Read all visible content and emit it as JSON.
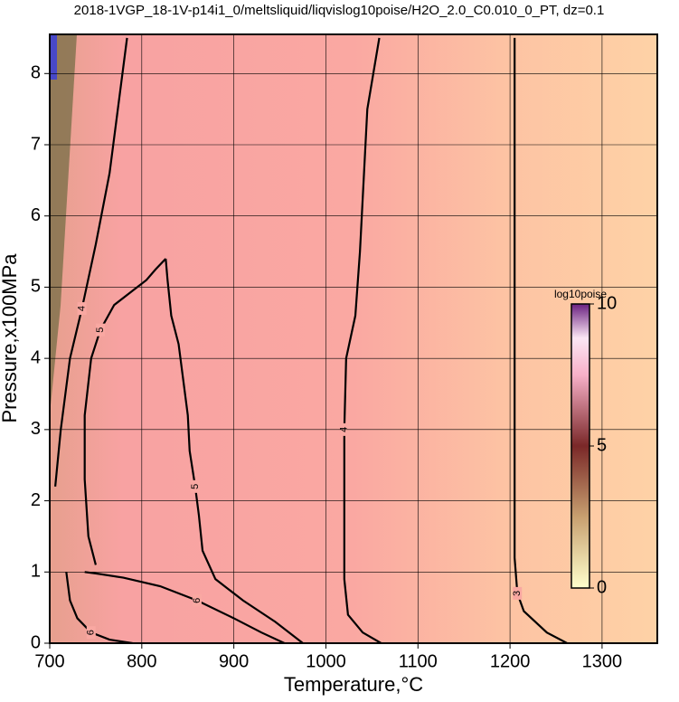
{
  "chart_data": {
    "type": "contour",
    "title": "2018-1VGP_18-1V-p14i1_0/meltsliquid/liqvislog10poise/H2O_2.0_C0.010_0_PT, dz=0.1",
    "x_label": "Temperature,°C",
    "y_label": "Pressure,x100MPa",
    "xlim": [
      700,
      1360
    ],
    "ylim": [
      0,
      8.55
    ],
    "xticks": [
      700,
      800,
      900,
      1000,
      1100,
      1200,
      1300
    ],
    "yticks": [
      0,
      1,
      2,
      3,
      4,
      5,
      6,
      7,
      8
    ],
    "grid": true,
    "contours": [
      {
        "level": 3,
        "x": [
          1205,
          1205,
          1205,
          1205,
          1208,
          1215,
          1240,
          1262
        ],
        "y": [
          8.5,
          6,
          3,
          1.2,
          0.7,
          0.45,
          0.15,
          0
        ]
      },
      {
        "level": 4,
        "x": [
          1058,
          1045,
          1037,
          1032,
          1022,
          1020,
          1020,
          1020,
          1024,
          1040,
          1060
        ],
        "y": [
          8.5,
          7.5,
          5.5,
          4.6,
          4.0,
          3.0,
          1.8,
          0.9,
          0.4,
          0.15,
          0
        ]
      },
      {
        "level": 4,
        "x": [
          784,
          775,
          765,
          750,
          735,
          722,
          712,
          706
        ],
        "y": [
          8.5,
          7.6,
          6.6,
          5.6,
          4.7,
          4.0,
          3.0,
          2.2
        ]
      },
      {
        "level": 5,
        "x": [
          826,
          815,
          805,
          790,
          770,
          755,
          745,
          738,
          738,
          742,
          750
        ],
        "y": [
          5.4,
          5.25,
          5.1,
          4.95,
          4.75,
          4.4,
          4.0,
          3.2,
          2.3,
          1.5,
          1.1
        ]
      },
      {
        "level": 5,
        "x": [
          826,
          828,
          832,
          840,
          845,
          850,
          852,
          858,
          862,
          866,
          880,
          910,
          945,
          975
        ],
        "y": [
          5.4,
          5.1,
          4.6,
          4.2,
          3.7,
          3.2,
          2.7,
          2.2,
          1.8,
          1.3,
          0.9,
          0.6,
          0.3,
          0
        ]
      },
      {
        "level": 6,
        "x": [
          738,
          750,
          780,
          820,
          860,
          900,
          930,
          955
        ],
        "y": [
          1.0,
          0.98,
          0.92,
          0.8,
          0.6,
          0.35,
          0.15,
          0
        ]
      },
      {
        "level": 6,
        "x": [
          718,
          722,
          730,
          745,
          765,
          790
        ],
        "y": [
          1.0,
          0.6,
          0.35,
          0.15,
          0.05,
          0
        ]
      }
    ],
    "colorbar": {
      "label": "log10poise",
      "lim": [
        0,
        10
      ],
      "ticks": [
        0,
        5,
        10
      ]
    }
  }
}
